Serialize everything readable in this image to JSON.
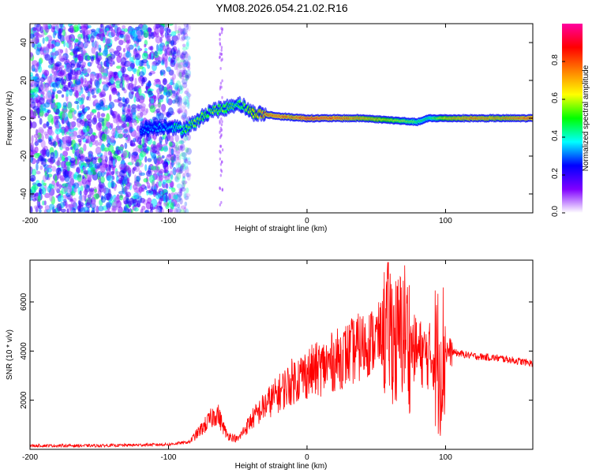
{
  "title": "YM08.2026.054.21.02.R16",
  "chart_data": [
    {
      "type": "heatmap",
      "name": "spectrogram",
      "xlabel": "Height of straight line (km)",
      "ylabel": "Frequency (Hz)",
      "xlim": [
        -200,
        163
      ],
      "ylim": [
        -50,
        50
      ],
      "xticks": [
        -200,
        -100,
        0,
        100
      ],
      "yticks": [
        -40,
        -20,
        0,
        20,
        40
      ],
      "colorbar": {
        "label": "Normalized spectral amplitude",
        "range": [
          0,
          1
        ],
        "ticks": [
          "0.0",
          "0.2",
          "0.4",
          "0.6",
          "0.8"
        ],
        "tick_values": [
          0.0,
          0.2,
          0.4,
          0.6,
          0.8
        ],
        "colors": [
          "#ffffff",
          "#8000ff",
          "#0000ff",
          "#00ffff",
          "#00ff00",
          "#ffff00",
          "#ff8000",
          "#ff0000",
          "#ff00a0"
        ]
      },
      "noise_region_km": [
        -200,
        -85
      ],
      "signal_trace": {
        "x": [
          -120,
          -100,
          -90,
          -80,
          -70,
          -60,
          -50,
          -45,
          -40,
          -30,
          -20,
          -10,
          0,
          20,
          40,
          60,
          80,
          88,
          100,
          120,
          140,
          163
        ],
        "y": [
          -6,
          -4,
          -6,
          -2,
          4,
          5,
          8,
          6,
          3,
          2,
          1,
          0.5,
          0,
          0,
          0,
          -1,
          -2,
          0,
          0,
          0,
          0,
          0
        ],
        "amplitude": [
          0.35,
          0.4,
          0.55,
          0.6,
          0.6,
          0.6,
          0.55,
          0.6,
          0.7,
          0.85,
          0.9,
          0.85,
          0.95,
          0.9,
          0.8,
          0.7,
          0.55,
          0.5,
          0.75,
          0.85,
          0.8,
          0.9
        ]
      }
    },
    {
      "type": "line",
      "name": "snr",
      "xlabel": "Height of straight line (km)",
      "ylabel": "SNR (10 * v/v)",
      "xlim": [
        -200,
        163
      ],
      "ylim": [
        0,
        7700
      ],
      "xticks": [
        -200,
        -100,
        0,
        100
      ],
      "yticks": [
        2000,
        4000,
        6000
      ],
      "color": "#ff0000",
      "series": [
        {
          "name": "SNR",
          "x": [
            -200,
            -150,
            -100,
            -85,
            -75,
            -65,
            -58,
            -50,
            -40,
            -30,
            -20,
            -10,
            0,
            10,
            20,
            30,
            40,
            50,
            60,
            65,
            70,
            75,
            80,
            85,
            90,
            95,
            100,
            110,
            120,
            140,
            163
          ],
          "y": [
            150,
            150,
            200,
            300,
            900,
            1500,
            600,
            400,
            1200,
            1800,
            2300,
            2800,
            3100,
            3300,
            3600,
            3900,
            4200,
            4500,
            5000,
            4200,
            5000,
            4200,
            4000,
            3800,
            3800,
            3600,
            4000,
            3900,
            3800,
            3700,
            3500
          ]
        }
      ]
    }
  ]
}
